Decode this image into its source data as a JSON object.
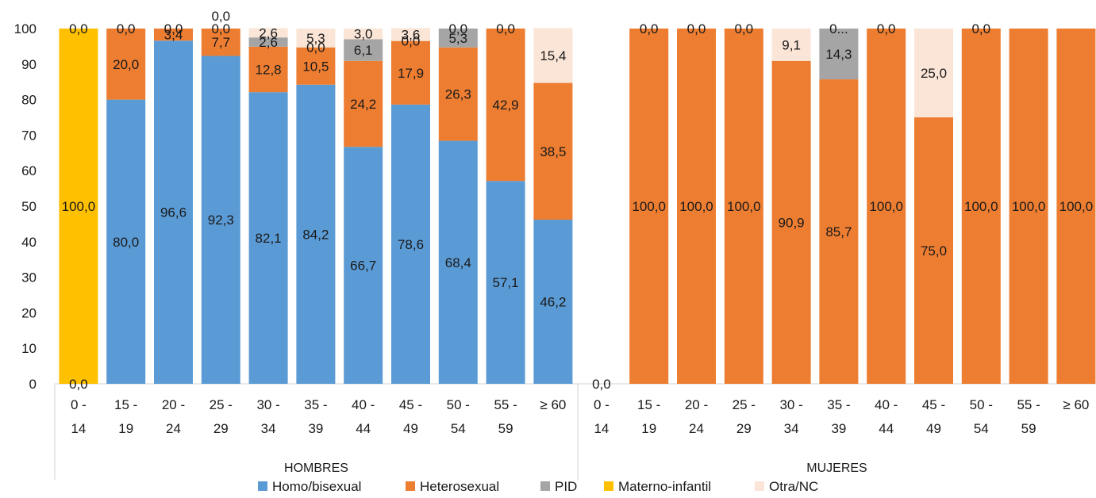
{
  "chart_data": {
    "type": "bar",
    "stacked": true,
    "ylim": [
      0,
      100
    ],
    "yticks": [
      0,
      10,
      20,
      30,
      40,
      50,
      60,
      70,
      80,
      90,
      100
    ],
    "grid": false,
    "legend_position": "bottom",
    "category_labels": [
      "0 - 14",
      "15 - 19",
      "20 - 24",
      "25 - 29",
      "30 - 34",
      "35 - 39",
      "40 - 44",
      "45 - 49",
      "50 - 54",
      "55 - 59",
      "≥ 60"
    ],
    "series": [
      {
        "name": "Homo/bisexual",
        "color": "#5b9bd5"
      },
      {
        "name": "Heterosexual",
        "color": "#ed7d31"
      },
      {
        "name": "PID",
        "color": "#a5a5a5"
      },
      {
        "name": "Materno-infantil",
        "color": "#ffc000"
      },
      {
        "name": "Otra/NC",
        "color": "#fbe5d6"
      }
    ],
    "groups": [
      {
        "name": "HOMBRES",
        "bars": [
          {
            "segments": [
              {
                "series": "Homo/bisexual",
                "value": 0,
                "label": "0,0"
              },
              {
                "series": "Materno-infantil",
                "value": 100,
                "label": "100,0"
              },
              {
                "series": "Heterosexual",
                "value": 0,
                "label": "0,0"
              }
            ]
          },
          {
            "segments": [
              {
                "series": "Homo/bisexual",
                "value": 80.0,
                "label": "80,0"
              },
              {
                "series": "Heterosexual",
                "value": 20.0,
                "label": "20,0"
              },
              {
                "series": "Otra/NC",
                "value": 0,
                "label": "0,0"
              }
            ]
          },
          {
            "segments": [
              {
                "series": "Homo/bisexual",
                "value": 96.6,
                "label": "96,6"
              },
              {
                "series": "Heterosexual",
                "value": 3.4,
                "label": "3,4"
              },
              {
                "series": "Otra/NC",
                "value": 0,
                "label": "0,0"
              }
            ]
          },
          {
            "segments": [
              {
                "series": "Homo/bisexual",
                "value": 92.3,
                "label": "92,3"
              },
              {
                "series": "Heterosexual",
                "value": 7.7,
                "label": "7,7"
              },
              {
                "series": "PID",
                "value": 0,
                "label": "0,0"
              },
              {
                "series": "Otra/NC",
                "value": 0,
                "label": "0,0"
              }
            ]
          },
          {
            "segments": [
              {
                "series": "Homo/bisexual",
                "value": 82.1,
                "label": "82,1"
              },
              {
                "series": "Heterosexual",
                "value": 12.8,
                "label": "12,8"
              },
              {
                "series": "PID",
                "value": 2.6,
                "label": "2,6"
              },
              {
                "series": "Otra/NC",
                "value": 2.6,
                "label": "2,6"
              }
            ]
          },
          {
            "segments": [
              {
                "series": "Homo/bisexual",
                "value": 84.2,
                "label": "84,2"
              },
              {
                "series": "Heterosexual",
                "value": 10.5,
                "label": "10,5"
              },
              {
                "series": "PID",
                "value": 0,
                "label": "0,0"
              },
              {
                "series": "Otra/NC",
                "value": 5.3,
                "label": "5,3"
              }
            ]
          },
          {
            "segments": [
              {
                "series": "Homo/bisexual",
                "value": 66.7,
                "label": "66,7"
              },
              {
                "series": "Heterosexual",
                "value": 24.2,
                "label": "24,2"
              },
              {
                "series": "PID",
                "value": 6.1,
                "label": "6,1"
              },
              {
                "series": "Otra/NC",
                "value": 3.0,
                "label": "3,0"
              }
            ]
          },
          {
            "segments": [
              {
                "series": "Homo/bisexual",
                "value": 78.6,
                "label": "78,6"
              },
              {
                "series": "Heterosexual",
                "value": 17.9,
                "label": "17,9"
              },
              {
                "series": "PID",
                "value": 0,
                "label": "0,0"
              },
              {
                "series": "Otra/NC",
                "value": 3.6,
                "label": "3,6"
              }
            ]
          },
          {
            "segments": [
              {
                "series": "Homo/bisexual",
                "value": 68.4,
                "label": "68,4"
              },
              {
                "series": "Heterosexual",
                "value": 26.3,
                "label": "26,3"
              },
              {
                "series": "PID",
                "value": 5.3,
                "label": "5,3"
              },
              {
                "series": "Otra/NC",
                "value": 0,
                "label": "0,0"
              }
            ]
          },
          {
            "segments": [
              {
                "series": "Homo/bisexual",
                "value": 57.1,
                "label": "57,1"
              },
              {
                "series": "Heterosexual",
                "value": 42.9,
                "label": "42,9"
              },
              {
                "series": "Otra/NC",
                "value": 0,
                "label": "0,0"
              }
            ]
          },
          {
            "segments": [
              {
                "series": "Homo/bisexual",
                "value": 46.2,
                "label": "46,2"
              },
              {
                "series": "Heterosexual",
                "value": 38.5,
                "label": "38,5"
              },
              {
                "series": "Otra/NC",
                "value": 15.4,
                "label": "15,4"
              }
            ]
          }
        ]
      },
      {
        "name": "MUJERES",
        "bars": [
          {
            "segments": [
              {
                "series": "Heterosexual",
                "value": 0,
                "label": "0,0"
              }
            ]
          },
          {
            "segments": [
              {
                "series": "Heterosexual",
                "value": 100.0,
                "label": "100,0"
              },
              {
                "series": "Otra/NC",
                "value": 0,
                "label": "0,0"
              }
            ]
          },
          {
            "segments": [
              {
                "series": "Heterosexual",
                "value": 100.0,
                "label": "100,0"
              },
              {
                "series": "Otra/NC",
                "value": 0,
                "label": "0,0"
              }
            ]
          },
          {
            "segments": [
              {
                "series": "Heterosexual",
                "value": 100.0,
                "label": "100,0"
              },
              {
                "series": "Otra/NC",
                "value": 0,
                "label": "0,0"
              }
            ]
          },
          {
            "segments": [
              {
                "series": "Heterosexual",
                "value": 90.9,
                "label": "90,9"
              },
              {
                "series": "Otra/NC",
                "value": 9.1,
                "label": "9,1"
              }
            ]
          },
          {
            "segments": [
              {
                "series": "Heterosexual",
                "value": 85.7,
                "label": "85,7"
              },
              {
                "series": "PID",
                "value": 14.3,
                "label": "14,3"
              },
              {
                "series": "Otra/NC",
                "value": 0,
                "label": "0..."
              }
            ]
          },
          {
            "segments": [
              {
                "series": "Heterosexual",
                "value": 100.0,
                "label": "100,0"
              },
              {
                "series": "Otra/NC",
                "value": 0,
                "label": "0,0"
              }
            ]
          },
          {
            "segments": [
              {
                "series": "Heterosexual",
                "value": 75.0,
                "label": "75,0"
              },
              {
                "series": "Otra/NC",
                "value": 25.0,
                "label": "25,0"
              }
            ]
          },
          {
            "segments": [
              {
                "series": "Heterosexual",
                "value": 100.0,
                "label": "100,0"
              },
              {
                "series": "Otra/NC",
                "value": 0,
                "label": "0,0"
              }
            ]
          },
          {
            "segments": [
              {
                "series": "Heterosexual",
                "value": 100.0,
                "label": "100,0"
              }
            ]
          },
          {
            "segments": [
              {
                "series": "Heterosexual",
                "value": 100.0,
                "label": "100,0"
              }
            ]
          }
        ]
      }
    ]
  }
}
